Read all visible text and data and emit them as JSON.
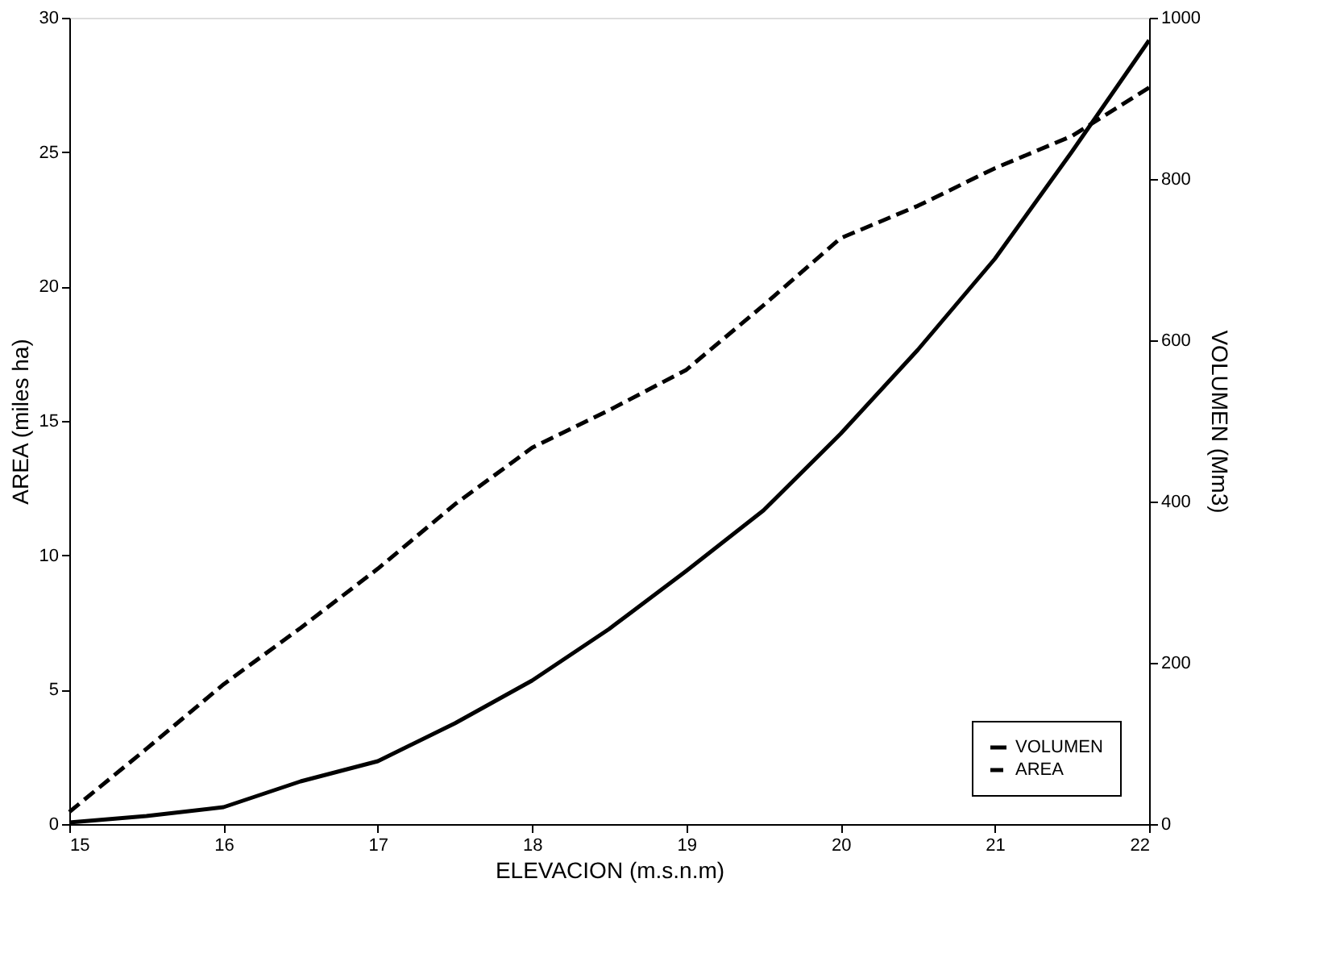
{
  "chart_data": {
    "type": "line",
    "xlabel": "ELEVACION (m.s.n.m)",
    "ylabel": "AREA (miles ha)",
    "y2label": "VOLUMEN (Mm3)",
    "x": [
      15,
      15.5,
      16,
      16.5,
      17,
      17.5,
      18,
      18.5,
      19,
      19.5,
      20,
      20.5,
      21,
      21.5,
      22
    ],
    "series": [
      {
        "name": "VOLUMEN",
        "color": "#000000",
        "axis": "y2",
        "line_style": "solid",
        "values": [
          2,
          10,
          21,
          53,
          78,
          125,
          178,
          242,
          314,
          389,
          484,
          588,
          701,
          834,
          972
        ]
      },
      {
        "name": "AREA",
        "color": "#000000",
        "line_style": "dashed",
        "values": [
          0.45,
          2.8,
          5.2,
          7.3,
          9.5,
          11.9,
          14,
          15.4,
          16.9,
          19.3,
          21.8,
          23.0,
          24.4,
          25.6,
          27.4
        ]
      }
    ],
    "xlim": [
      15,
      22
    ],
    "xticks": [
      15,
      16,
      17,
      18,
      19,
      20,
      21,
      22
    ],
    "ylim": [
      0,
      30
    ],
    "yticks": [
      0,
      5,
      10,
      15,
      20,
      25,
      30
    ],
    "y2lim": [
      0,
      1000
    ],
    "y2ticks": [
      0,
      200,
      400,
      600,
      800,
      1000
    ],
    "grid": false,
    "legend": "bottom right",
    "marker": "none"
  }
}
